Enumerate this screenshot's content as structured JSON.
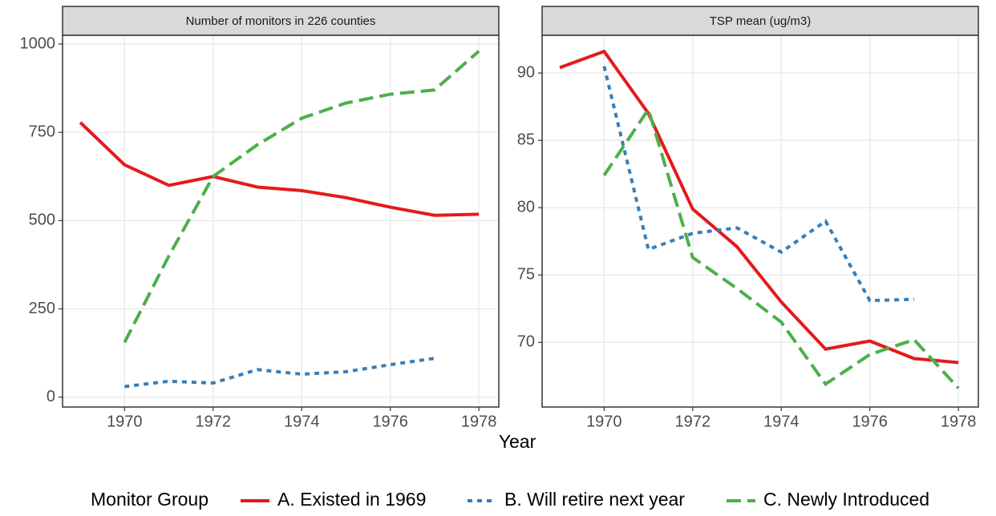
{
  "chart_data": {
    "type": "line",
    "x_label": "Year",
    "legend_title": "Monitor Group",
    "legend_position": "bottom",
    "grid": true,
    "series": [
      {
        "name": "A. Existed in 1969",
        "color": "#e41a1c",
        "linetype": "solid"
      },
      {
        "name": "B. Will retire next year",
        "color": "#377eb8",
        "linetype": "dotted"
      },
      {
        "name": "C. Newly Introduced",
        "color": "#4daf4a",
        "linetype": "dashed"
      }
    ],
    "panels": [
      {
        "title": "Number of monitors in 226 counties",
        "x": [
          1969,
          1970,
          1971,
          1972,
          1973,
          1974,
          1975,
          1976,
          1977,
          1978
        ],
        "xlim": [
          1968.6,
          1978.45
        ],
        "xticks": [
          1970,
          1972,
          1974,
          1976,
          1978
        ],
        "ylim": [
          -28,
          1025
        ],
        "yticks": [
          0,
          250,
          500,
          750,
          1000
        ],
        "series": [
          {
            "values": [
              778,
              658,
              600,
              625,
              595,
              585,
              565,
              538,
              515,
              518
            ]
          },
          {
            "values": [
              null,
              30,
              45,
              40,
              78,
              65,
              72,
              92,
              110,
              null
            ]
          },
          {
            "values": [
              null,
              155,
              400,
              625,
              715,
              790,
              833,
              858,
              870,
              980
            ]
          }
        ]
      },
      {
        "title": "TSP mean (ug/m3)",
        "x": [
          1969,
          1970,
          1971,
          1972,
          1973,
          1974,
          1975,
          1976,
          1977,
          1978
        ],
        "xlim": [
          1968.6,
          1978.45
        ],
        "xticks": [
          1970,
          1972,
          1974,
          1976,
          1978
        ],
        "ylim": [
          65.2,
          92.8
        ],
        "yticks": [
          70,
          75,
          80,
          85,
          90
        ],
        "series": [
          {
            "values": [
              90.4,
              91.6,
              87.0,
              79.9,
              77.1,
              73.0,
              69.5,
              70.1,
              68.8,
              68.5
            ]
          },
          {
            "values": [
              null,
              90.5,
              76.9,
              78.1,
              78.5,
              76.7,
              79.0,
              73.1,
              73.2,
              null
            ]
          },
          {
            "values": [
              null,
              82.4,
              87.3,
              76.3,
              74.0,
              71.5,
              66.9,
              69.1,
              70.2,
              66.6
            ]
          }
        ]
      }
    ]
  }
}
